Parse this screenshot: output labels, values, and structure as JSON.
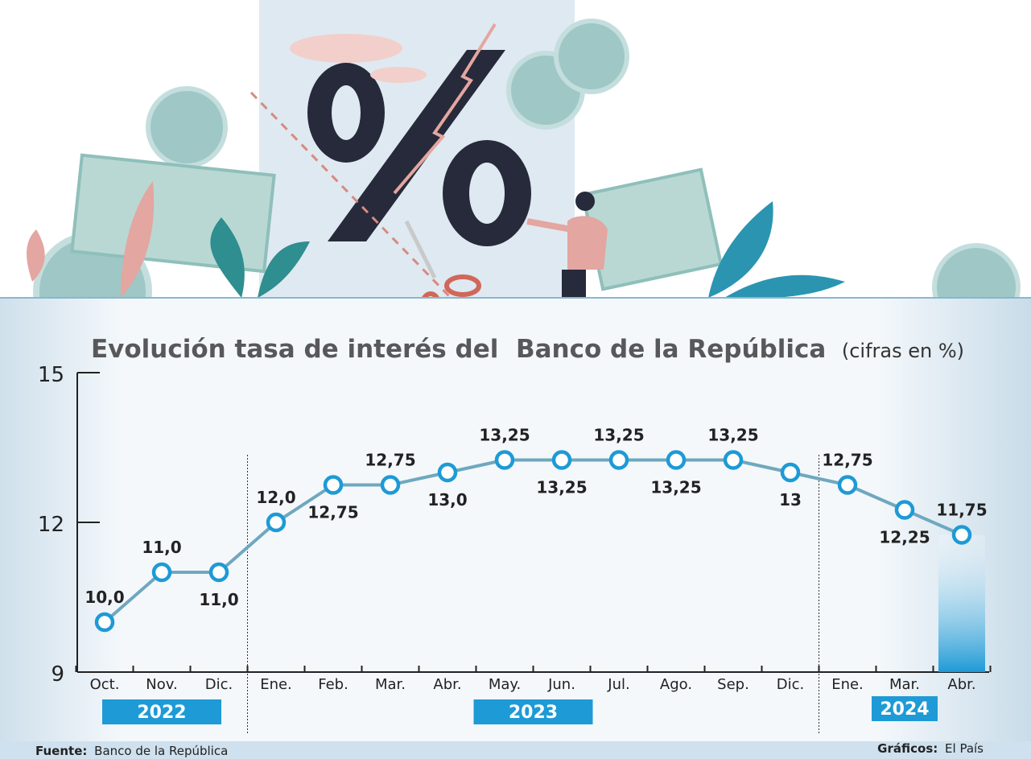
{
  "chart_data": {
    "type": "line",
    "title": "Evolución tasa de interés del  Banco de la República",
    "subtitle": "(cifras en %)",
    "categories": [
      "Oct.",
      "Nov.",
      "Dic.",
      "Ene.",
      "Feb.",
      "Mar.",
      "Abr.",
      "May.",
      "Jun.",
      "Jul.",
      "Ago.",
      "Sep.",
      "Dic.",
      "Ene.",
      "Mar.",
      "Abr."
    ],
    "values": [
      10.0,
      11.0,
      11.0,
      12.0,
      12.75,
      12.75,
      13.0,
      13.25,
      13.25,
      13.25,
      13.25,
      13.25,
      13.0,
      12.75,
      12.25,
      11.75
    ],
    "data_labels": [
      "10,0",
      "11,0",
      "11,0",
      "12,0",
      "12,75",
      "12,75",
      "13,0",
      "13,25",
      "13,25",
      "13,25",
      "13,25",
      "13,25",
      "13",
      "12,75",
      "12,25",
      "11,75"
    ],
    "label_positions": [
      "above",
      "above",
      "below",
      "above",
      "below",
      "above",
      "below",
      "above",
      "below",
      "above",
      "below",
      "above",
      "below",
      "above",
      "below",
      "above"
    ],
    "ylim": [
      9,
      15
    ],
    "yticks": [
      "15",
      "12",
      "9"
    ],
    "year_groups": [
      {
        "label": "2022",
        "start": 0,
        "end": 2
      },
      {
        "label": "2023",
        "start": 3,
        "end": 12
      },
      {
        "label": "2024",
        "start": 13,
        "end": 15
      }
    ],
    "highlight_index": 15,
    "grid": false,
    "colors": {
      "line": "#6fa8be",
      "marker": "#1e9ad6",
      "year_box": "#1e9ad6",
      "highlight": "#1e9ad6",
      "title": "#58585a"
    }
  },
  "footer": {
    "source_label": "Fuente:",
    "source_value": "Banco de la República",
    "credit_label": "Gráficos:",
    "credit_value": "El País"
  },
  "illustration": {
    "icons": [
      "percent-sign-icon",
      "scissors-icon",
      "coin-icon",
      "banknote-icon",
      "plant-icon",
      "person-icon",
      "lightning-arrow-icon"
    ]
  }
}
